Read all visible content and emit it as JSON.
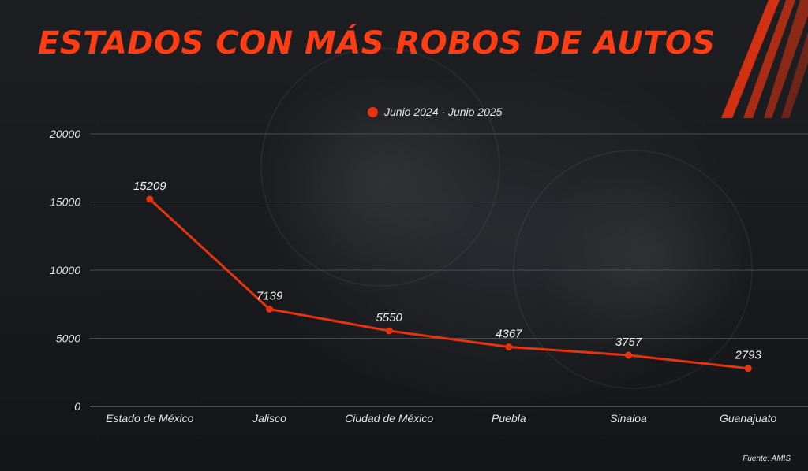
{
  "title": "ESTADOS CON MÁS ROBOS DE AUTOS",
  "source": "Fuente: AMIS",
  "colors": {
    "accent": "#ff3d14",
    "line": "#e8330f",
    "background": "#16181b",
    "grid": "#4a4d52",
    "text": "#e6e6e6"
  },
  "chart_data": {
    "type": "line",
    "categories": [
      "Estado de México",
      "Jalisco",
      "Ciudad de México",
      "Puebla",
      "Sinaloa",
      "Guanajuato"
    ],
    "series": [
      {
        "name": "Junio 2024 - Junio 2025",
        "values": [
          15209,
          7139,
          5550,
          4367,
          3757,
          2793
        ]
      }
    ],
    "ylim": [
      0,
      20000
    ],
    "yticks": [
      0,
      5000,
      10000,
      15000,
      20000
    ],
    "grid": true,
    "legend_position": "top-center",
    "data_labels": true,
    "xlabel": "",
    "ylabel": ""
  }
}
